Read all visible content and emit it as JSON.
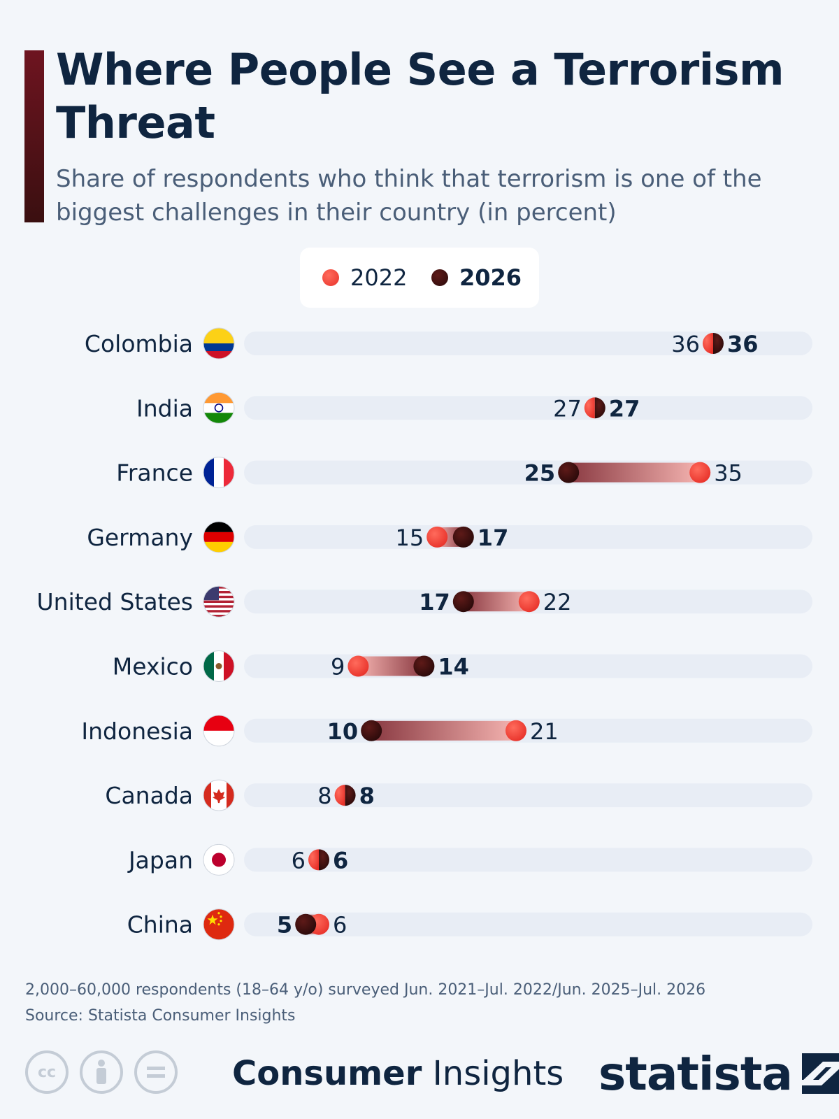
{
  "header": {
    "title": "Where People See a Terrorism Threat",
    "subtitle": "Share of respondents who think that terrorism is one of the biggest challenges in their country (in percent)"
  },
  "legend": {
    "items": [
      {
        "label": "2022",
        "color": "#f0433a",
        "bold": false
      },
      {
        "label": "2026",
        "color": "#3a0f10",
        "bold": true
      }
    ]
  },
  "colors": {
    "color_2022": "#f0433a",
    "color_2026": "#3a0f10",
    "track": "#e8edf5",
    "text": "#0f2540",
    "accent": "#6e1420"
  },
  "chart_data": {
    "type": "dumbbell",
    "title": "Where People See a Terrorism Threat",
    "subtitle": "Share of respondents who think that terrorism is one of the biggest challenges in their country (in percent)",
    "categories": [
      "Colombia",
      "India",
      "France",
      "Germany",
      "United States",
      "Mexico",
      "Indonesia",
      "Canada",
      "Japan",
      "China"
    ],
    "flags": [
      "colombia-flag",
      "india-flag",
      "france-flag",
      "germany-flag",
      "usa-flag",
      "mexico-flag",
      "indonesia-flag",
      "canada-flag",
      "japan-flag",
      "china-flag"
    ],
    "series": [
      {
        "name": "2022",
        "values": [
          36,
          27,
          35,
          15,
          22,
          9,
          21,
          8,
          6,
          6
        ]
      },
      {
        "name": "2026",
        "values": [
          36,
          27,
          25,
          17,
          17,
          14,
          10,
          8,
          6,
          5
        ]
      }
    ],
    "xlim": [
      0,
      44
    ]
  },
  "footer": {
    "note": "2,000–60,000 respondents (18–64 y/o) surveyed Jun. 2021–Jul. 2022/Jun. 2025–Jul. 2026",
    "source": "Source: Statista Consumer Insights",
    "brand_bold": "Consumer",
    "brand_light": "Insights",
    "logo": "statista",
    "license_icons": [
      "cc-icon",
      "attribution-icon",
      "no-derivatives-icon"
    ]
  }
}
